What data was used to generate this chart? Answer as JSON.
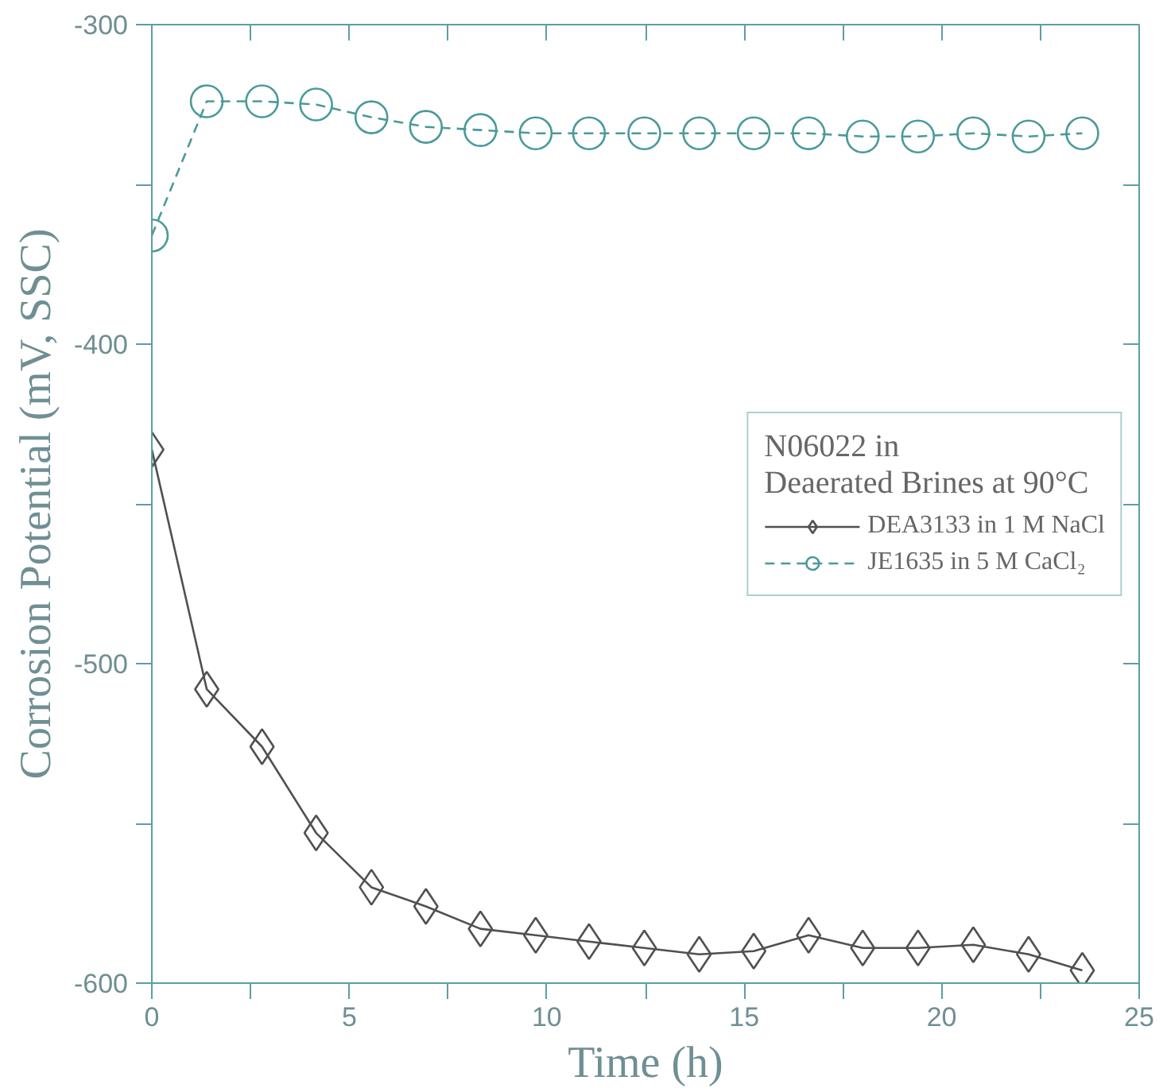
{
  "chart_data": {
    "type": "line",
    "xlabel": "Time (h)",
    "ylabel": "Corrosion Potential (mV, SSC)",
    "legend_title": "N06022 in\nDeaerated Brines at 90°C",
    "legend": "right",
    "grid": false,
    "xlim": [
      0,
      25
    ],
    "ylim": [
      -600,
      -300
    ],
    "xticks": [
      0,
      {
        "value": 2.5,
        "label": null
      },
      5,
      {
        "value": 7.5,
        "label": null
      },
      10,
      {
        "value": 12.5,
        "label": null
      },
      15,
      {
        "value": 17.5,
        "label": null
      },
      20,
      {
        "value": 22.5,
        "label": null
      },
      25
    ],
    "yticks": [
      -600,
      {
        "value": -550,
        "label": null
      },
      -500,
      {
        "value": -450,
        "label": null
      },
      -400,
      {
        "value": -350,
        "label": null
      },
      -300
    ],
    "series": [
      {
        "name": "DEA3133 in 1 M NaCl",
        "color": "#505050",
        "marker": "diamond",
        "line_style": "solid",
        "x": [
          0,
          1.39,
          2.79,
          4.16,
          5.56,
          6.94,
          8.32,
          9.72,
          11.07,
          12.47,
          13.86,
          15.24,
          16.63,
          18.0,
          19.4,
          20.8,
          22.2,
          23.56
        ],
        "values": [
          -433,
          -508,
          -526,
          -553,
          -570,
          -576,
          -583,
          -585,
          -587,
          -589,
          -591,
          -590,
          -585,
          -589,
          -589,
          -588,
          -591,
          -596
        ]
      },
      {
        "name": "JE1635 in 5 M CaCl₂",
        "color": "#4a9a9a",
        "marker": "circle",
        "line_style": "dashed",
        "x": [
          0,
          1.39,
          2.79,
          4.16,
          5.56,
          6.94,
          8.32,
          9.72,
          11.07,
          12.47,
          13.86,
          15.24,
          16.63,
          18.0,
          19.4,
          20.8,
          22.2,
          23.56
        ],
        "values": [
          -366,
          -324,
          -324,
          -325,
          -329,
          -332,
          -333,
          -334,
          -334,
          -334,
          -334,
          -334,
          -334,
          -335,
          -335,
          -334,
          -335,
          -334
        ]
      }
    ]
  }
}
